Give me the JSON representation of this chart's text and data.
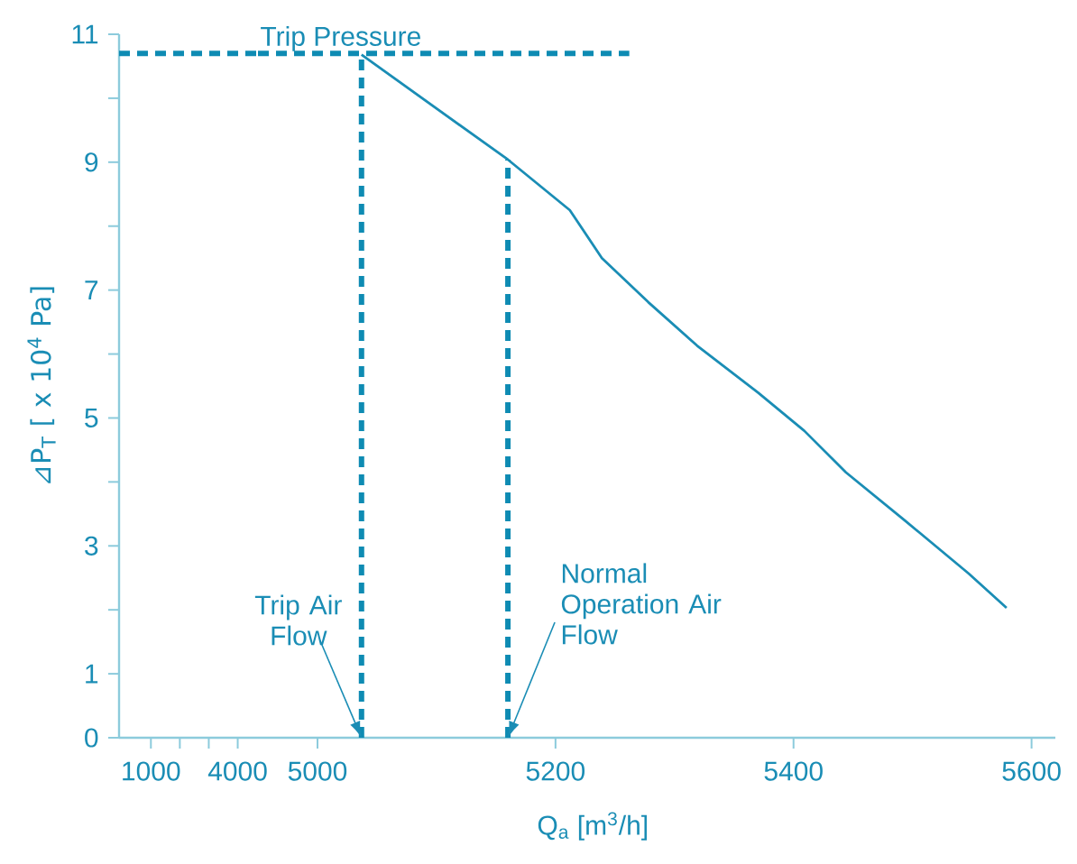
{
  "chart_data": [
    {
      "type": "line",
      "ylabel": "⊿P$_{T}$  [ x 10$^{4}$ Pa]",
      "xlim": [
        -100,
        4700
      ],
      "ylim": [
        0,
        11
      ],
      "xticks": [
        1000,
        {
          "value": 2000,
          "label": null
        },
        {
          "value": 3000,
          "label": null
        },
        4000
      ],
      "yticks": [
        0,
        1,
        {
          "value": 2,
          "label": null
        },
        3,
        {
          "value": 4,
          "label": null
        },
        5,
        {
          "value": 6,
          "label": null
        },
        7,
        {
          "value": 8,
          "label": null
        },
        9,
        {
          "value": 10,
          "label": null
        },
        11
      ],
      "series": [
        {
          "color": "#0e8bb3",
          "x": [
            -100,
            4700
          ],
          "values": [
            10.7,
            10.7
          ],
          "line_style": "dashed"
        }
      ]
    },
    {
      "type": "line",
      "xlabel": "Q$_{a}$  [m$^{3}$/h]",
      "xlim": [
        4950,
        5620
      ],
      "ylim": [
        0,
        11
      ],
      "tick_labels": "x",
      "xticks": [
        5000,
        5200,
        5400,
        5600
      ],
      "series": [
        {
          "color": "#1a8db5",
          "x": [
            5037,
            5160,
            5212,
            5239,
            5278,
            5319,
            5370,
            5409,
            5444,
            5494,
            5547,
            5579
          ],
          "values": [
            10.68,
            9.04,
            8.25,
            7.5,
            6.81,
            6.13,
            5.4,
            4.8,
            4.15,
            3.39,
            2.57,
            2.03
          ],
          "line_style": "solid"
        },
        {
          "name": "Trip Pressure",
          "color": "#0e8bb3",
          "x": [
            4950,
            5262
          ],
          "values": [
            10.7,
            10.7
          ],
          "line_style": "dashed"
        },
        {
          "color": "#0e8bb3",
          "x": [
            5037,
            5037
          ],
          "values": [
            0,
            10.68
          ],
          "line_style": "dashed"
        },
        {
          "color": "#0e8bb3",
          "x": [
            5160,
            5160
          ],
          "values": [
            0,
            9.04
          ],
          "line_style": "dashed"
        }
      ],
      "annotations": [
        {
          "text": "Trip Air Flow",
          "x": 5037,
          "y": 0
        },
        {
          "text": "Normal Operation Air Flow",
          "x": 5160,
          "y": 0
        }
      ]
    }
  ]
}
